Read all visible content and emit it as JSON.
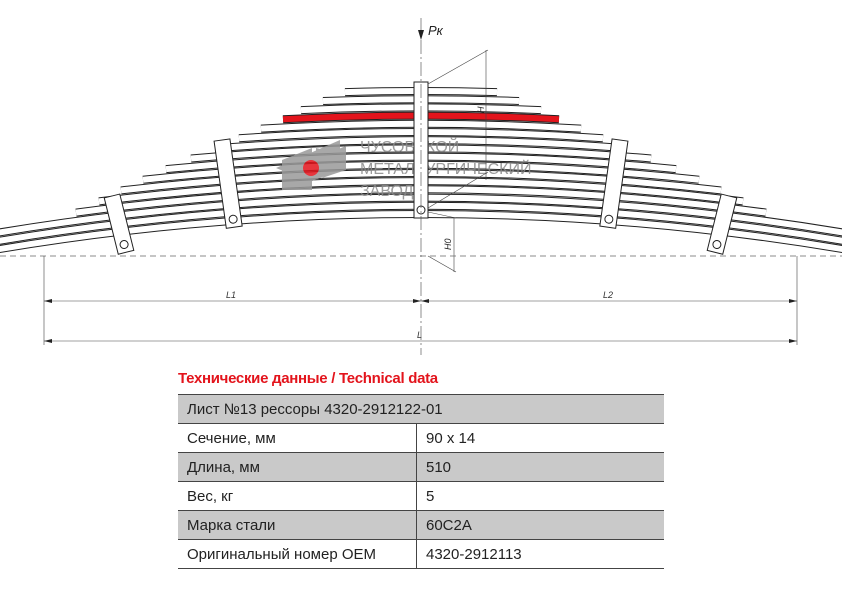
{
  "drawing": {
    "load_label": "Pк",
    "height_label": "H",
    "h0_label": "H0",
    "l1_label": "L1",
    "l2_label": "L2",
    "l_label": "L",
    "logo_text": [
      "ЧУСОВСКОЙ",
      "МЕТАЛЛУРГИЧЕСКИЙ",
      "ЗАВОД"
    ],
    "highlight_color": "#e3141c"
  },
  "specs": {
    "title": "Технические данные / Technical data",
    "header": "Лист №13 рессоры 4320-2912122-01",
    "rows": [
      {
        "label": "Сечение, мм",
        "value": "90 x 14"
      },
      {
        "label": "Длина, мм",
        "value": "510"
      },
      {
        "label": "Вес, кг",
        "value": "5"
      },
      {
        "label": "Марка стали",
        "value": "60С2А"
      },
      {
        "label": "Оригинальный номер OEM",
        "value": "4320-2912113"
      }
    ]
  }
}
